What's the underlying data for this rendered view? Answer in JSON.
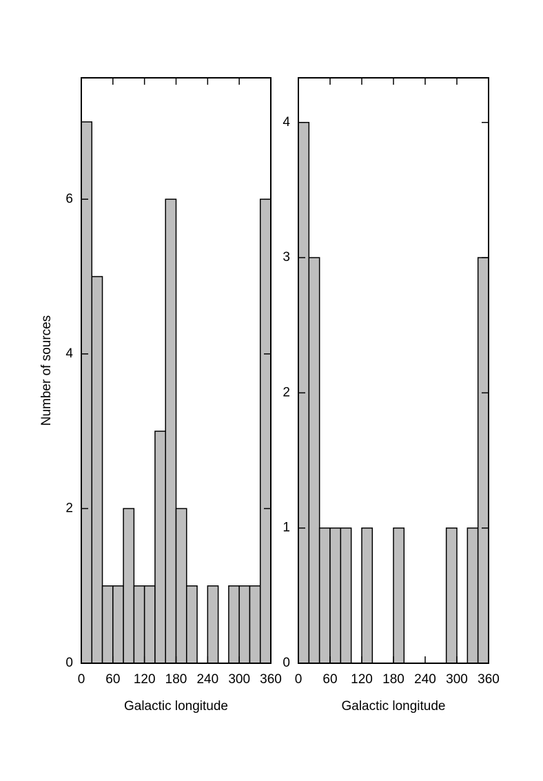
{
  "chart_data": [
    {
      "type": "histogram",
      "ylabel": "Number of sources",
      "xlabel": "Galactic longitude",
      "bins": [
        0,
        20,
        40,
        60,
        80,
        100,
        120,
        140,
        160,
        180,
        200,
        220,
        240,
        260,
        280,
        300,
        320,
        340,
        360
      ],
      "values": [
        7,
        5,
        1,
        1,
        2,
        1,
        1,
        3,
        6,
        2,
        1,
        0,
        1,
        0,
        1,
        1,
        1,
        6
      ],
      "color": "#bebebe",
      "xlim": [
        0,
        360
      ],
      "xticks": [
        0,
        60,
        120,
        180,
        240,
        300,
        360
      ],
      "ylim": [
        0,
        7.57
      ],
      "yticks": [
        0,
        2,
        4,
        6
      ]
    },
    {
      "type": "histogram",
      "xlabel": "Galactic longitude",
      "bins": [
        0,
        20,
        40,
        60,
        80,
        100,
        120,
        140,
        160,
        180,
        200,
        220,
        240,
        260,
        280,
        300,
        320,
        340,
        360
      ],
      "values": [
        4,
        3,
        1,
        1,
        1,
        0,
        1,
        0,
        0,
        1,
        0,
        0,
        0,
        0,
        1,
        0,
        1,
        3
      ],
      "color": "#bebebe",
      "xlim": [
        0,
        360
      ],
      "xticks": [
        0,
        60,
        120,
        180,
        240,
        300,
        360
      ],
      "ylim": [
        0,
        4.33
      ],
      "yticks": [
        0,
        1,
        2,
        3,
        4
      ]
    }
  ]
}
